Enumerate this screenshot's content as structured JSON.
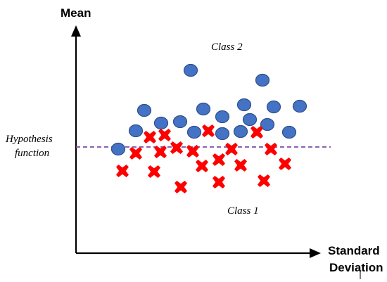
{
  "labels": {
    "y_axis": "Mean",
    "x_axis_line1": "Standard",
    "x_axis_line2": "Deviation",
    "hypothesis_line1": "Hypothesis",
    "hypothesis_line2": "function",
    "class2": "Class 2",
    "class1": "Class 1"
  },
  "colors": {
    "class2": "#4472c4",
    "class1": "#ff0000",
    "hypothesis_line": "#7a4fa3",
    "axes": "#000000"
  },
  "chart_data": {
    "type": "scatter",
    "xlabel": "Standard Deviation",
    "ylabel": "Mean",
    "series": [
      {
        "name": "Class 2",
        "marker": "circle",
        "points": [
          [
            271,
            100
          ],
          [
            373,
            114
          ],
          [
            205,
            157
          ],
          [
            289,
            155
          ],
          [
            347,
            149
          ],
          [
            389,
            152
          ],
          [
            426,
            151
          ],
          [
            229,
            175
          ],
          [
            256,
            173
          ],
          [
            316,
            166
          ],
          [
            355,
            170
          ],
          [
            380,
            177
          ],
          [
            193,
            186
          ],
          [
            276,
            188
          ],
          [
            316,
            190
          ],
          [
            342,
            187
          ],
          [
            411,
            188
          ],
          [
            168,
            212
          ]
        ]
      },
      {
        "name": "Class 1",
        "marker": "cross",
        "points": [
          [
            213,
            195
          ],
          [
            234,
            192
          ],
          [
            296,
            186
          ],
          [
            365,
            188
          ],
          [
            193,
            218
          ],
          [
            228,
            216
          ],
          [
            251,
            210
          ],
          [
            274,
            215
          ],
          [
            329,
            212
          ],
          [
            385,
            212
          ],
          [
            287,
            236
          ],
          [
            311,
            227
          ],
          [
            342,
            235
          ],
          [
            405,
            233
          ],
          [
            174,
            243
          ],
          [
            219,
            244
          ],
          [
            257,
            266
          ],
          [
            311,
            259
          ],
          [
            375,
            257
          ]
        ]
      }
    ],
    "hypothesis_line": {
      "style": "dashed",
      "y": 209,
      "x_range": [
        108,
        470
      ]
    }
  }
}
